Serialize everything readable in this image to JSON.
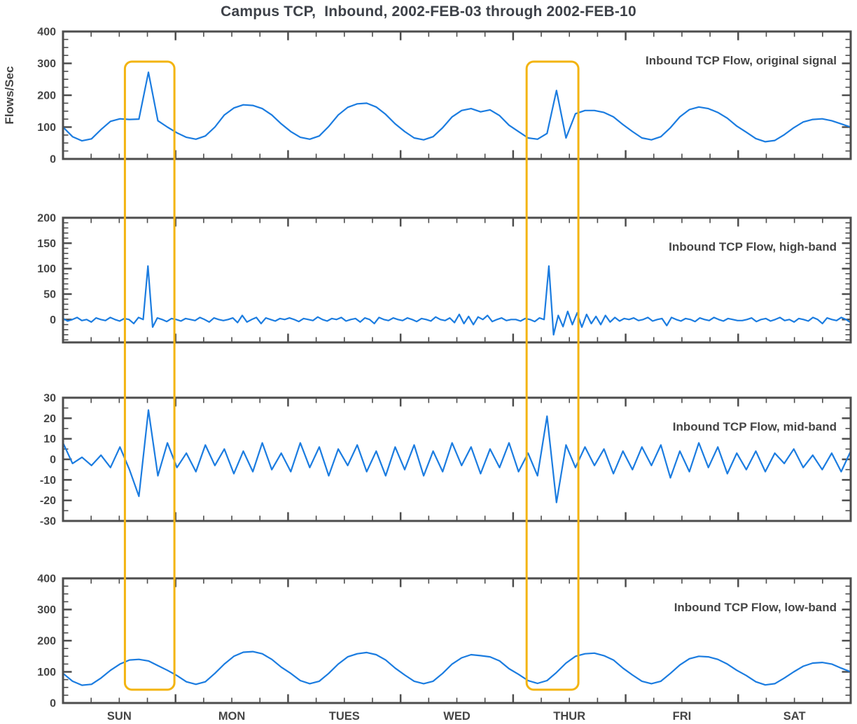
{
  "title": "Campus TCP,  Inbound, 2002-FEB-03 through 2002-FEB-10",
  "ylabel": "Flows/Sec",
  "colors": {
    "line": "#1b7ce0",
    "axis": "#4d4d4d",
    "text": "#454545",
    "title": "#3d4148",
    "highlight": "#f3b411"
  },
  "day_labels": [
    "SUN",
    "MON",
    "TUES",
    "WED",
    "THUR",
    "FRI",
    "SAT"
  ],
  "highlights": [
    {
      "x0_day": 0.55,
      "x1_day": 0.99
    },
    {
      "x0_day": 4.12,
      "x1_day": 4.58
    }
  ],
  "chart_data": [
    {
      "type": "line",
      "title": "Inbound TCP Flow, original signal",
      "xlabel": "",
      "ylabel": "Flows/Sec",
      "x_range_days": 7,
      "ylim": [
        0,
        400
      ],
      "yticks": [
        0,
        100,
        200,
        300,
        400
      ],
      "ytick_minor": 25,
      "values": [
        100,
        70,
        57,
        63,
        92,
        118,
        126,
        124,
        125,
        272,
        120,
        100,
        82,
        68,
        62,
        72,
        100,
        138,
        160,
        170,
        168,
        158,
        138,
        110,
        86,
        68,
        62,
        72,
        102,
        138,
        162,
        173,
        175,
        163,
        140,
        110,
        86,
        66,
        60,
        70,
        98,
        132,
        152,
        158,
        148,
        154,
        136,
        106,
        86,
        66,
        62,
        80,
        215,
        66,
        142,
        152,
        152,
        146,
        132,
        108,
        86,
        66,
        60,
        70,
        98,
        132,
        155,
        163,
        158,
        146,
        128,
        103,
        84,
        64,
        54,
        58,
        76,
        98,
        116,
        124,
        126,
        120,
        110,
        100
      ]
    },
    {
      "type": "line",
      "title": "Inbound TCP Flow, high-band",
      "xlabel": "",
      "ylabel": "Flows/Sec",
      "x_range_days": 7,
      "ylim": [
        -45,
        200
      ],
      "yticks": [
        0,
        50,
        100,
        150,
        200
      ],
      "ytick_minor": 10,
      "values": [
        2,
        -3,
        0,
        4,
        -2,
        0,
        -5,
        3,
        0,
        -2,
        4,
        0,
        -3,
        2,
        0,
        -8,
        4,
        0,
        105,
        -15,
        3,
        0,
        -4,
        2,
        0,
        -3,
        2,
        0,
        -2,
        4,
        0,
        -5,
        3,
        0,
        -2,
        0,
        3,
        -6,
        8,
        -5,
        0,
        4,
        -8,
        3,
        0,
        -3,
        2,
        0,
        3,
        0,
        -4,
        2,
        0,
        -2,
        5,
        0,
        -3,
        2,
        0,
        4,
        -3,
        0,
        2,
        -5,
        3,
        0,
        -8,
        4,
        0,
        -2,
        3,
        0,
        -2,
        3,
        0,
        -4,
        2,
        0,
        -3,
        5,
        0,
        -2,
        3,
        -6,
        10,
        -8,
        6,
        -10,
        5,
        0,
        8,
        -4,
        0,
        3,
        -2,
        0,
        0,
        -3,
        2,
        0,
        -4,
        3,
        0,
        105,
        -30,
        8,
        -14,
        16,
        -10,
        13,
        -15,
        10,
        -8,
        6,
        -10,
        8,
        -5,
        4,
        -3,
        2,
        0,
        3,
        -2,
        0,
        4,
        -3,
        0,
        2,
        -12,
        4,
        0,
        -3,
        2,
        0,
        -4,
        3,
        0,
        -2,
        4,
        0,
        -3,
        2,
        0,
        -2,
        -2,
        0,
        3,
        -4,
        0,
        2,
        -3,
        0,
        4,
        -2,
        0,
        -5,
        2,
        0,
        -3,
        4,
        0,
        -8,
        3,
        0,
        -2,
        4,
        0,
        -6
      ]
    },
    {
      "type": "line",
      "title": "Inbound TCP Flow, mid-band",
      "xlabel": "",
      "ylabel": "Flows/Sec",
      "x_range_days": 7,
      "ylim": [
        -30,
        30
      ],
      "yticks": [
        -30,
        -20,
        -10,
        0,
        10,
        20,
        30
      ],
      "ytick_minor": 5,
      "values": [
        8,
        -2,
        1,
        -3,
        2,
        -4,
        6,
        -5,
        -18,
        24,
        -8,
        8,
        -4,
        3,
        -6,
        7,
        -3,
        5,
        -7,
        4,
        -6,
        8,
        -5,
        3,
        -6,
        8,
        -4,
        6,
        -8,
        5,
        -3,
        7,
        -6,
        4,
        -8,
        6,
        -5,
        7,
        -8,
        4,
        -6,
        8,
        -3,
        6,
        -7,
        5,
        -4,
        8,
        -6,
        3,
        -8,
        21,
        -21,
        7,
        -4,
        6,
        -3,
        5,
        -7,
        4,
        -5,
        6,
        -3,
        7,
        -9,
        4,
        -6,
        8,
        -4,
        6,
        -7,
        3,
        -5,
        4,
        -6,
        3,
        -2,
        5,
        -4,
        2,
        -5,
        3,
        -6,
        4
      ]
    },
    {
      "type": "line",
      "title": "Inbound TCP Flow, low-band",
      "xlabel": "",
      "ylabel": "Flows/Sec",
      "x_range_days": 7,
      "ylim": [
        0,
        400
      ],
      "yticks": [
        0,
        100,
        200,
        300,
        400
      ],
      "ytick_minor": 25,
      "values": [
        95,
        70,
        57,
        60,
        80,
        105,
        125,
        138,
        140,
        135,
        120,
        105,
        88,
        68,
        60,
        68,
        95,
        125,
        150,
        163,
        165,
        158,
        140,
        115,
        95,
        72,
        62,
        70,
        95,
        125,
        148,
        158,
        162,
        155,
        138,
        112,
        90,
        70,
        62,
        70,
        95,
        125,
        145,
        155,
        152,
        148,
        135,
        110,
        92,
        72,
        63,
        72,
        98,
        128,
        150,
        158,
        160,
        152,
        138,
        112,
        90,
        70,
        62,
        70,
        95,
        122,
        142,
        150,
        148,
        140,
        125,
        105,
        88,
        68,
        58,
        62,
        80,
        100,
        118,
        128,
        130,
        125,
        112,
        100
      ]
    }
  ]
}
